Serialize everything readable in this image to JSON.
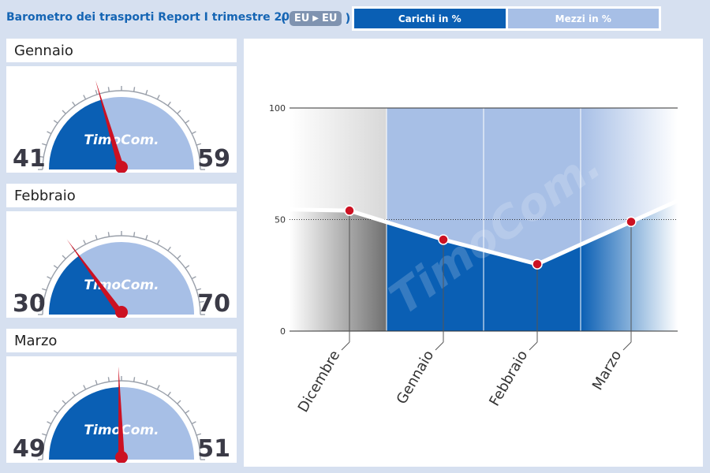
{
  "header": {
    "title": "Barometro dei trasporti Report I trimestre 2014",
    "route_from": "EU",
    "route_to": "EU",
    "legend_loads": "Carichi in %",
    "legend_vehicles": "Mezzi in %"
  },
  "colors": {
    "loads": "#0a5fb4",
    "vehicles": "#a7bfe6",
    "needle": "#cc1122",
    "background": "#d6e0f0"
  },
  "gauges": [
    {
      "month": "Gennaio",
      "loads": 41,
      "vehicles": 59,
      "logo": "TimoCom."
    },
    {
      "month": "Febbraio",
      "loads": 30,
      "vehicles": 70,
      "logo": "TimoCom."
    },
    {
      "month": "Marzo",
      "loads": 49,
      "vehicles": 51,
      "logo": "TimoCom."
    }
  ],
  "chart_data": {
    "type": "line",
    "categories": [
      "Dicembre",
      "Gennaio",
      "Febbraio",
      "Marzo"
    ],
    "series": [
      {
        "values": [
          54,
          41,
          30,
          49
        ]
      }
    ],
    "ylim": [
      0,
      100
    ],
    "yticks": [
      0,
      50,
      100
    ],
    "watermark": "TimoCom.",
    "grid": true
  }
}
